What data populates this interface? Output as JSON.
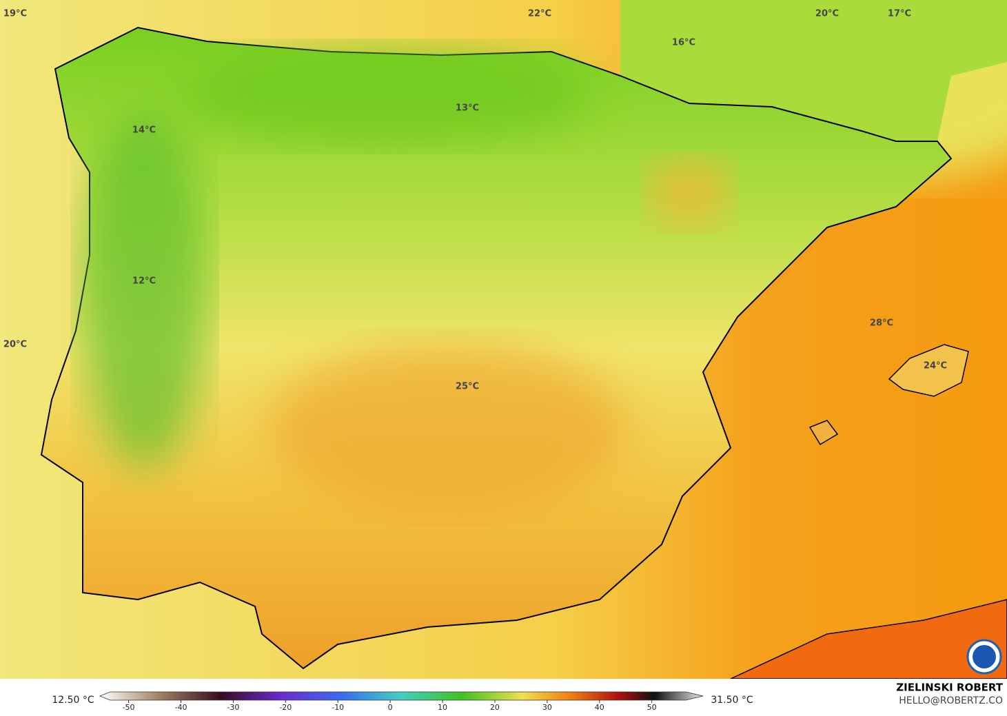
{
  "map": {
    "labels": [
      "19°C",
      "22°C",
      "20°C",
      "17°C",
      "16°C",
      "13°C",
      "14°C",
      "12°C",
      "20°C",
      "28°C",
      "24°C",
      "25°C"
    ]
  },
  "legend": {
    "min_label": "12.50 °C",
    "max_label": "31.50 °C",
    "range": [
      -53.5,
      56.5
    ],
    "ticks": [
      -50,
      -40,
      -30,
      -20,
      -10,
      0,
      10,
      20,
      30,
      40,
      50
    ]
  },
  "credit": {
    "name": "ZIELINSKI ROBERT",
    "email": "HELLO@ROBERTZ.CO"
  }
}
